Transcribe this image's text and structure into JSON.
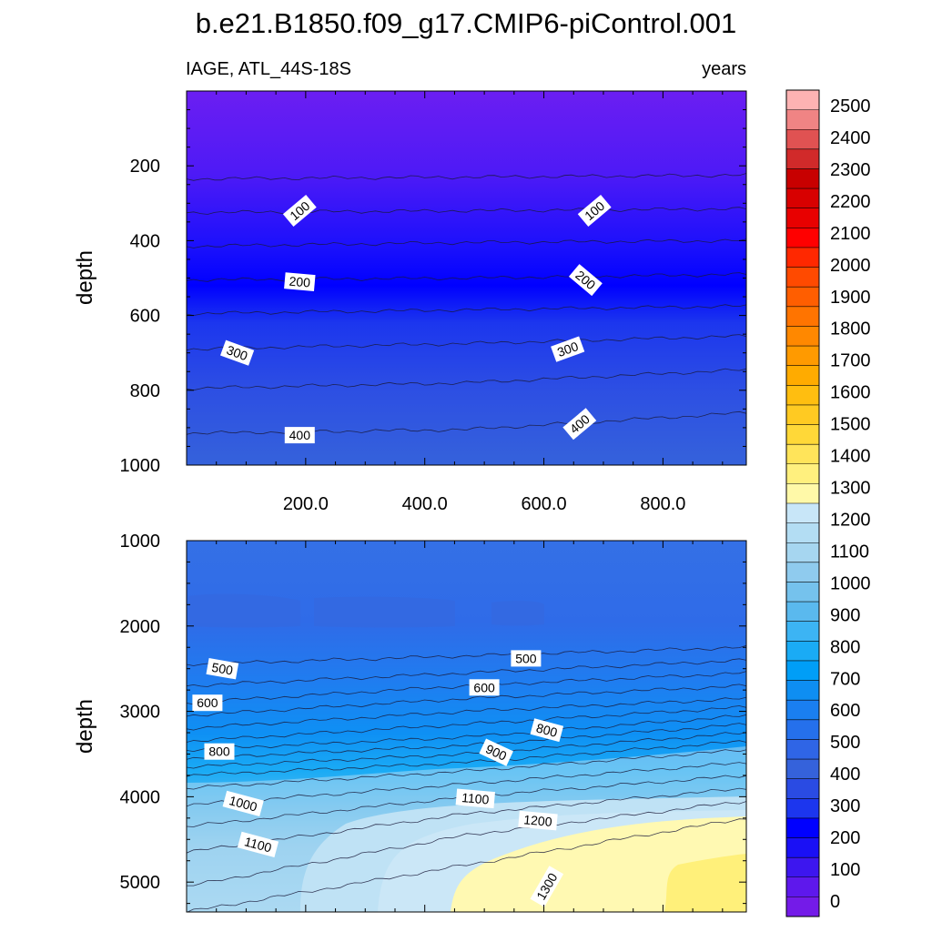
{
  "title": "b.e21.B1850.f09_g17.CMIP6-piControl.001",
  "subtitle_left": "IAGE, ATL_44S-18S",
  "subtitle_right": "years",
  "chart_data": [
    {
      "type": "heatmap",
      "panel": "upper",
      "ylabel": "depth",
      "xlabel": "",
      "xlim": [
        0,
        940
      ],
      "ylim": [
        1000,
        0
      ],
      "x_ticks": [
        "200.0",
        "400.0",
        "600.0",
        "800.0"
      ],
      "y_ticks": [
        "200",
        "400",
        "600",
        "800",
        "1000"
      ],
      "contour_lines": [
        {
          "level": 50,
          "depth": [
            235,
            230,
            225
          ]
        },
        {
          "level": 100,
          "depth": [
            325,
            320,
            315
          ]
        },
        {
          "level": 150,
          "depth": [
            415,
            405,
            400
          ]
        },
        {
          "level": 200,
          "depth": [
            505,
            500,
            490
          ]
        },
        {
          "level": 250,
          "depth": [
            595,
            585,
            575
          ]
        },
        {
          "level": 300,
          "depth": [
            690,
            675,
            655
          ]
        },
        {
          "level": 350,
          "depth": [
            795,
            780,
            745
          ]
        },
        {
          "level": 400,
          "depth": [
            915,
            905,
            860
          ]
        }
      ],
      "contour_labels": [
        {
          "text": "100",
          "x": 190,
          "depth": 320,
          "angle": 40
        },
        {
          "text": "100",
          "x": 685,
          "depth": 320,
          "angle": 40
        },
        {
          "text": "200",
          "x": 190,
          "depth": 510,
          "angle": -5
        },
        {
          "text": "200",
          "x": 670,
          "depth": 505,
          "angle": -40
        },
        {
          "text": "300",
          "x": 85,
          "depth": 700,
          "angle": -20
        },
        {
          "text": "300",
          "x": 640,
          "depth": 690,
          "angle": 20
        },
        {
          "text": "400",
          "x": 190,
          "depth": 920,
          "angle": 0
        },
        {
          "text": "400",
          "x": 660,
          "depth": 890,
          "angle": 40
        }
      ]
    },
    {
      "type": "heatmap",
      "panel": "lower",
      "ylabel": "depth",
      "xlabel": "",
      "xlim": [
        0,
        940
      ],
      "ylim": [
        5350,
        1000
      ],
      "y_ticks": [
        "1000",
        "2000",
        "3000",
        "4000",
        "5000"
      ],
      "contour_lines": [
        {
          "level": 450,
          "depth": [
            2450,
            2350,
            2250
          ]
        },
        {
          "level": 500,
          "depth": [
            2700,
            2550,
            2400
          ]
        },
        {
          "level": 550,
          "depth": [
            2900,
            2700,
            2550
          ]
        },
        {
          "level": 600,
          "depth": [
            3050,
            2850,
            2700
          ]
        },
        {
          "level": 650,
          "depth": [
            3200,
            3000,
            2850
          ]
        },
        {
          "level": 700,
          "depth": [
            3350,
            3150,
            2950
          ]
        },
        {
          "level": 750,
          "depth": [
            3450,
            3300,
            3050
          ]
        },
        {
          "level": 800,
          "depth": [
            3550,
            3400,
            3150
          ]
        },
        {
          "level": 850,
          "depth": [
            3650,
            3500,
            3250
          ]
        },
        {
          "level": 900,
          "depth": [
            3750,
            3600,
            3350
          ]
        },
        {
          "level": 950,
          "depth": [
            3900,
            3700,
            3450
          ]
        },
        {
          "level": 1000,
          "depth": [
            4100,
            3850,
            3600
          ]
        },
        {
          "level": 1050,
          "depth": [
            4350,
            4000,
            3750
          ]
        },
        {
          "level": 1100,
          "depth": [
            4650,
            4200,
            3900
          ]
        },
        {
          "level": 1150,
          "depth": [
            5050,
            4450,
            4050
          ]
        },
        {
          "level": 1200,
          "depth": [
            5350,
            4800,
            4250
          ]
        }
      ],
      "contour_labels": [
        {
          "text": "500",
          "x": 60,
          "depth": 2500,
          "angle": -10
        },
        {
          "text": "500",
          "x": 570,
          "depth": 2380,
          "angle": 0
        },
        {
          "text": "600",
          "x": 35,
          "depth": 2900,
          "angle": 0
        },
        {
          "text": "600",
          "x": 500,
          "depth": 2720,
          "angle": 0
        },
        {
          "text": "800",
          "x": 55,
          "depth": 3470,
          "angle": 0
        },
        {
          "text": "800",
          "x": 605,
          "depth": 3220,
          "angle": -15
        },
        {
          "text": "900",
          "x": 520,
          "depth": 3480,
          "angle": -25
        },
        {
          "text": "1000",
          "x": 95,
          "depth": 4080,
          "angle": -15
        },
        {
          "text": "1100",
          "x": 485,
          "depth": 4020,
          "angle": -5
        },
        {
          "text": "1100",
          "x": 120,
          "depth": 4560,
          "angle": -15
        },
        {
          "text": "1200",
          "x": 590,
          "depth": 4280,
          "angle": -5
        },
        {
          "text": "1300",
          "x": 605,
          "depth": 5050,
          "angle": 60
        }
      ]
    }
  ],
  "colorbar": {
    "labels": [
      "2500",
      "2400",
      "2300",
      "2200",
      "2100",
      "2000",
      "1900",
      "1800",
      "1700",
      "1600",
      "1500",
      "1400",
      "1300",
      "1200",
      "1100",
      "1000",
      "900",
      "800",
      "700",
      "600",
      "500",
      "400",
      "300",
      "200",
      "100",
      "0"
    ],
    "colors": [
      "#fdb3b3",
      "#f08484",
      "#e05252",
      "#d12a2a",
      "#c80000",
      "#d80000",
      "#e80000",
      "#ff0000",
      "#ff2800",
      "#ff4a00",
      "#ff5e00",
      "#ff7400",
      "#ff8800",
      "#ff9a00",
      "#ffab00",
      "#ffbe10",
      "#ffca22",
      "#ffd838",
      "#ffe45a",
      "#fff07e",
      "#fff9a8",
      "#c8e6f8",
      "#b3ddf3",
      "#a6d6f0",
      "#8fcbee",
      "#75c2ed",
      "#5ab9ee",
      "#3cb4f4",
      "#1aabf5",
      "#009ef7",
      "#0e8ef2",
      "#1a7ff0",
      "#2570ec",
      "#2f65e6",
      "#3562db",
      "#2a4be3",
      "#1c36ee",
      "#0000ff",
      "#1a10f5",
      "#3d16ef",
      "#5e18ec",
      "#741be8"
    ]
  }
}
